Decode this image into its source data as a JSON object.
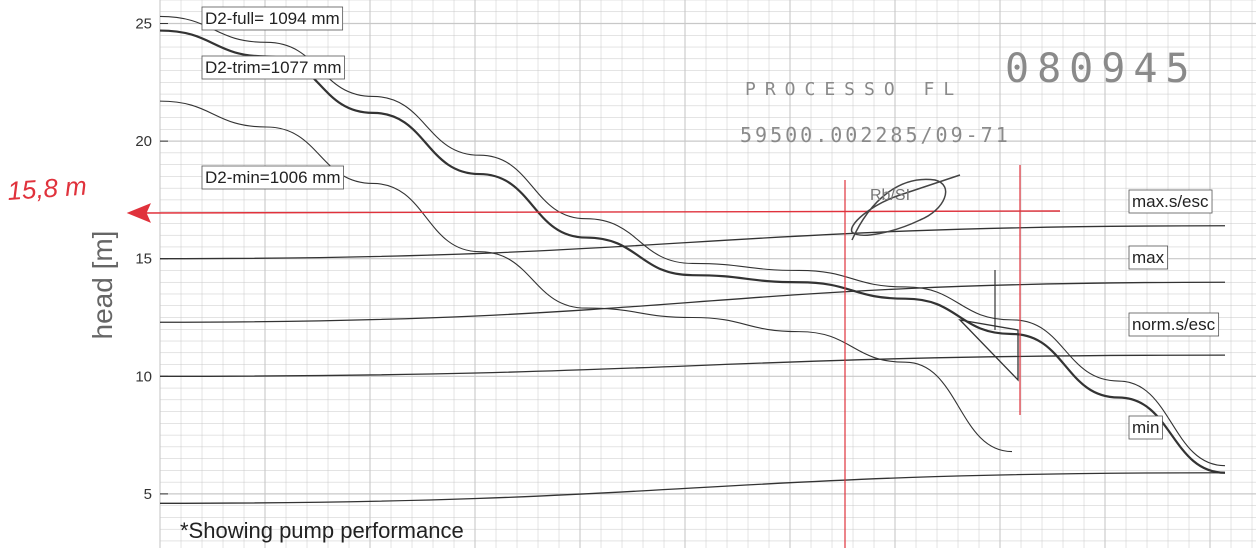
{
  "chart_data": {
    "type": "line",
    "title": "",
    "xlabel": "",
    "ylabel": "head [m]",
    "ylim": [
      2.7,
      26
    ],
    "yticks": [
      5,
      10,
      15,
      20,
      25
    ],
    "grid": true,
    "series": [
      {
        "name": "D2-full= 1094 mm",
        "x": [
          0,
          0.1,
          0.2,
          0.3,
          0.4,
          0.5,
          0.6,
          0.7,
          0.8,
          0.9,
          1.0
        ],
        "values": [
          25.3,
          24.2,
          21.9,
          19.4,
          16.7,
          14.8,
          14.5,
          13.8,
          12.4,
          9.8,
          6.2
        ]
      },
      {
        "name": "D2-trim=1077 mm",
        "x": [
          0,
          0.1,
          0.2,
          0.3,
          0.4,
          0.5,
          0.6,
          0.7,
          0.8,
          0.9,
          1.0
        ],
        "values": [
          24.7,
          23.6,
          21.2,
          18.6,
          15.9,
          14.3,
          14.0,
          13.3,
          11.8,
          9.1,
          5.9
        ]
      },
      {
        "name": "D2-min=1006 mm",
        "x": [
          0,
          0.1,
          0.2,
          0.3,
          0.4,
          0.5,
          0.6,
          0.7,
          0.8
        ],
        "values": [
          21.7,
          20.6,
          18.2,
          15.3,
          12.9,
          12.5,
          11.9,
          10.6,
          6.8
        ]
      },
      {
        "name": "max.s/esc",
        "x": [
          0,
          1.0
        ],
        "values": [
          15.0,
          16.4
        ]
      },
      {
        "name": "max",
        "x": [
          0,
          1.0
        ],
        "values": [
          12.3,
          14.0
        ]
      },
      {
        "name": "norm.s/esc",
        "x": [
          0,
          1.0
        ],
        "values": [
          10.0,
          10.9
        ]
      },
      {
        "name": "min",
        "x": [
          0,
          1.0
        ],
        "values": [
          4.6,
          5.9
        ]
      }
    ],
    "annotations": {
      "note": "*Showing pump performance",
      "handwritten_head": "15,8 m",
      "marked_head_value": 15.8,
      "stamp_number": "080945",
      "stamp_line1": "PROCESSO FL",
      "stamp_line2": "59500.002285/09-71"
    },
    "colors": {
      "curves": "#333333",
      "grid": "#c8c8c8",
      "handwriting": "#e0323c",
      "axis_text": "#444444"
    }
  }
}
